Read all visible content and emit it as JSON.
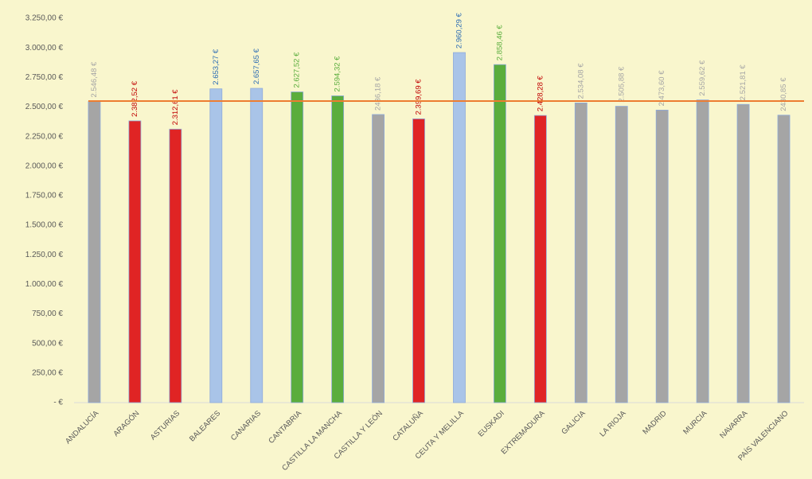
{
  "chart_data": {
    "type": "bar",
    "categories": [
      "ANDALUCÍA",
      "ARAGÓN",
      "ASTURIAS",
      "BALEARES",
      "CANARIAS",
      "CANTABRIA",
      "CASTILLA LA MANCHA",
      "CASTILLA Y LEÓN",
      "CATALUÑA",
      "CEUTA Y MELILLA",
      "EUSKADI",
      "EXTREMADURA",
      "GALICIA",
      "LA RIOJA",
      "MADRID",
      "MURCIA",
      "NAVARRA",
      "PAÍS VALENCIANO"
    ],
    "values": [
      2546.48,
      2382.52,
      2312.61,
      2653.27,
      2657.65,
      2627.52,
      2594.32,
      2436.18,
      2399.69,
      2960.29,
      2858.46,
      2428.28,
      2534.08,
      2505.88,
      2473.6,
      2559.62,
      2521.81,
      2430.85
    ],
    "value_labels": [
      "2.546,48 €",
      "2.382,52 €",
      "2.312,61 €",
      "2.653,27 €",
      "2.657,65 €",
      "2.627,52 €",
      "2.594,32 €",
      "2436,18 €",
      "2.399,69 €",
      "2.960,29 €",
      "2.858,46 €",
      "2.428,28 €",
      "2.534,08 €",
      "2.505,88 €",
      "2.473,60 €",
      "2.559,62 €",
      "2.521,81 €",
      "2430,85 €"
    ],
    "colors": [
      "#a5a5a5",
      "#e02424",
      "#e02424",
      "#a9c4e8",
      "#a9c4e8",
      "#5aad3c",
      "#5aad3c",
      "#a5a5a5",
      "#e02424",
      "#a9c4e8",
      "#5aad3c",
      "#e02424",
      "#a5a5a5",
      "#a5a5a5",
      "#a5a5a5",
      "#a5a5a5",
      "#a5a5a5",
      "#a5a5a5"
    ],
    "value_label_colors": [
      "#a5a5a5",
      "#c00000",
      "#c00000",
      "#2e6db4",
      "#2e6db4",
      "#5aad3c",
      "#5aad3c",
      "#a5a5a5",
      "#c00000",
      "#2e6db4",
      "#5aad3c",
      "#c00000",
      "#a5a5a5",
      "#a5a5a5",
      "#a5a5a5",
      "#a5a5a5",
      "#a5a5a5",
      "#a5a5a5"
    ],
    "reference_line": 2550,
    "reference_color": "#ed7d31",
    "ylim": [
      0,
      3250
    ],
    "yticks": [
      {
        "value": 0,
        "label": "-  €"
      },
      {
        "value": 250,
        "label": "250,00 €"
      },
      {
        "value": 500,
        "label": "500,00 €"
      },
      {
        "value": 750,
        "label": "750,00 €"
      },
      {
        "value": 1000,
        "label": "1.000,00 €"
      },
      {
        "value": 1250,
        "label": "1.250,00 €"
      },
      {
        "value": 1500,
        "label": "1.500,00 €"
      },
      {
        "value": 1750,
        "label": "1.750,00 €"
      },
      {
        "value": 2000,
        "label": "2.000,00 €"
      },
      {
        "value": 2250,
        "label": "2.250,00 €"
      },
      {
        "value": 2500,
        "label": "2.500,00 €"
      },
      {
        "value": 2750,
        "label": "2.750,00 €"
      },
      {
        "value": 3000,
        "label": "3.000,00 €"
      },
      {
        "value": 3250,
        "label": "3.250,00 €"
      }
    ]
  }
}
